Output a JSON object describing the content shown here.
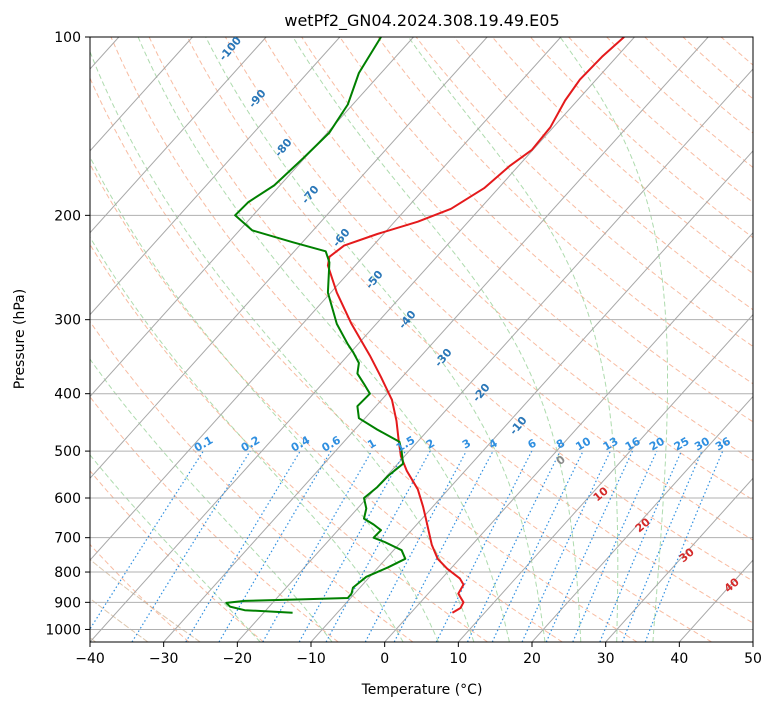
{
  "chart_data": {
    "type": "line",
    "title": "wetPf2_GN04.2024.308.19.49.E05",
    "xlabel": "Temperature (°C)",
    "ylabel": "Pressure (hPa)",
    "xlim": [
      -40,
      50
    ],
    "ylim": [
      1050,
      100
    ],
    "y_scale": "log",
    "grid": true,
    "x_ticks": [
      "−40",
      "−30",
      "−20",
      "−10",
      "0",
      "10",
      "20",
      "30",
      "40",
      "50"
    ],
    "x_tick_values": [
      -40,
      -30,
      -20,
      -10,
      0,
      10,
      20,
      30,
      40,
      50
    ],
    "y_ticks": [
      "100",
      "200",
      "300",
      "400",
      "500",
      "600",
      "700",
      "800",
      "900",
      "1000"
    ],
    "y_tick_values": [
      100,
      200,
      300,
      400,
      500,
      600,
      700,
      800,
      900,
      1000
    ],
    "dry_adiabat_labels": [
      "-100",
      "-90",
      "-80",
      "-70",
      "-60",
      "-50",
      "-40",
      "-30",
      "-20",
      "-10"
    ],
    "moist_adiabat_labels": [
      "0",
      "10",
      "20",
      "30",
      "40"
    ],
    "mixing_ratio_labels": [
      "0.1",
      "0.2",
      "0.4",
      "0.6",
      "1",
      "1.5",
      "2",
      "3",
      "4",
      "6",
      "8",
      "10",
      "13",
      "16",
      "20",
      "25",
      "30",
      "36"
    ],
    "series": [
      {
        "color": "#e41a1c",
        "points": [
          [
            9.2,
            937
          ],
          [
            10.3,
            920
          ],
          [
            10.7,
            900
          ],
          [
            10.0,
            870
          ],
          [
            10.7,
            840
          ],
          [
            10.2,
            820
          ],
          [
            8.5,
            790
          ],
          [
            7.2,
            760
          ],
          [
            6.4,
            720
          ],
          [
            6.0,
            685
          ],
          [
            5.6,
            650
          ],
          [
            5.2,
            620
          ],
          [
            4.5,
            580
          ],
          [
            3.0,
            540
          ],
          [
            2.2,
            510
          ],
          [
            1.9,
            480
          ],
          [
            1.6,
            445
          ],
          [
            1.0,
            410
          ],
          [
            -0.5,
            375
          ],
          [
            -2.0,
            345
          ],
          [
            -4.5,
            305
          ],
          [
            -6.5,
            270
          ],
          [
            -7.7,
            243
          ],
          [
            -7.5,
            235
          ],
          [
            -5.5,
            225
          ],
          [
            -1.0,
            215
          ],
          [
            4.5,
            205
          ],
          [
            9.0,
            195
          ],
          [
            13.5,
            180
          ],
          [
            17.0,
            165
          ],
          [
            20.0,
            155
          ],
          [
            22.5,
            142
          ],
          [
            24.5,
            128
          ],
          [
            26.5,
            118
          ],
          [
            29.5,
            108
          ],
          [
            32.5,
            100
          ]
        ]
      },
      {
        "color": "#008000",
        "points": [
          [
            -12.5,
            937
          ],
          [
            -19.0,
            928
          ],
          [
            -21.0,
            915
          ],
          [
            -21.5,
            902
          ],
          [
            -19.0,
            895
          ],
          [
            -12.0,
            890
          ],
          [
            -5.0,
            885
          ],
          [
            -4.5,
            870
          ],
          [
            -4.3,
            850
          ],
          [
            -2.5,
            815
          ],
          [
            0.5,
            785
          ],
          [
            2.8,
            760
          ],
          [
            2.3,
            735
          ],
          [
            0.0,
            712
          ],
          [
            -1.5,
            700
          ],
          [
            -0.5,
            680
          ],
          [
            -1.5,
            665
          ],
          [
            -2.8,
            650
          ],
          [
            -2.5,
            625
          ],
          [
            -2.8,
            600
          ],
          [
            -1.0,
            575
          ],
          [
            0.5,
            550
          ],
          [
            2.5,
            525
          ],
          [
            2.3,
            500
          ],
          [
            2.0,
            482
          ],
          [
            -1.0,
            460
          ],
          [
            -3.5,
            440
          ],
          [
            -3.7,
            420
          ],
          [
            -2.0,
            400
          ],
          [
            -2.8,
            385
          ],
          [
            -3.7,
            370
          ],
          [
            -3.5,
            355
          ],
          [
            -4.3,
            340
          ],
          [
            -5.0,
            330
          ],
          [
            -6.5,
            305
          ],
          [
            -7.7,
            270
          ],
          [
            -7.5,
            240
          ],
          [
            -8.0,
            230
          ],
          [
            -12.5,
            222
          ],
          [
            -18.0,
            212
          ],
          [
            -20.3,
            200
          ],
          [
            -18.5,
            190
          ],
          [
            -15.0,
            178
          ],
          [
            -11.0,
            160
          ],
          [
            -7.5,
            145
          ],
          [
            -5.0,
            130
          ],
          [
            -3.5,
            115
          ],
          [
            -0.5,
            100
          ]
        ]
      }
    ]
  }
}
